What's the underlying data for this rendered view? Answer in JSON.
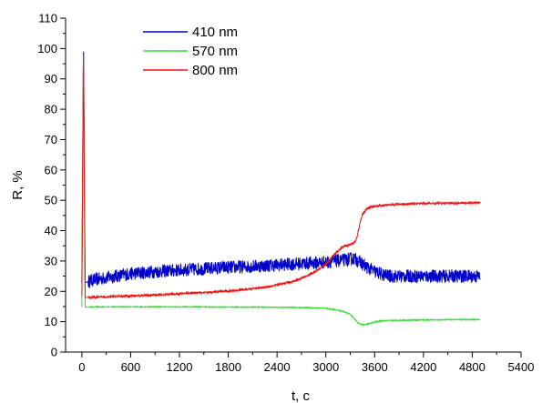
{
  "chart_data": {
    "type": "line",
    "xlabel": "t, c",
    "ylabel": "R, %",
    "xlim": [
      -200,
      5400
    ],
    "ylim": [
      0,
      110
    ],
    "x_ticks": [
      0,
      600,
      1200,
      1800,
      2400,
      3000,
      3600,
      4200,
      4800,
      5400
    ],
    "y_ticks": [
      0,
      10,
      20,
      30,
      40,
      50,
      60,
      70,
      80,
      90,
      100,
      110
    ],
    "grid": false,
    "legend_position": "top-left",
    "series": [
      {
        "name": "410 nm",
        "color": "#0000cc",
        "noise": 2.2,
        "x": [
          0,
          20,
          40,
          60,
          100,
          200,
          400,
          600,
          800,
          1000,
          1200,
          1400,
          1600,
          1800,
          2000,
          2200,
          2400,
          2600,
          2800,
          3000,
          3100,
          3200,
          3300,
          3350,
          3400,
          3450,
          3500,
          3600,
          3700,
          3800,
          4000,
          4200,
          4400,
          4600,
          4800,
          4900
        ],
        "y": [
          23,
          103,
          23,
          23,
          23.5,
          24,
          25,
          25.8,
          26.3,
          26.7,
          27,
          27.3,
          27.6,
          27.9,
          28.1,
          28.4,
          28.7,
          29,
          29.3,
          29.6,
          29.9,
          30.2,
          30.6,
          30.8,
          30,
          29,
          28,
          26.5,
          25.5,
          25,
          25,
          25,
          25,
          25,
          25,
          25
        ]
      },
      {
        "name": "570 nm",
        "color": "#33dd33",
        "noise": 0.15,
        "x": [
          0,
          20,
          40,
          60,
          200,
          600,
          1000,
          1400,
          1800,
          2200,
          2600,
          2800,
          3000,
          3100,
          3200,
          3300,
          3350,
          3400,
          3450,
          3500,
          3550,
          3600,
          3700,
          3800,
          4000,
          4200,
          4400,
          4600,
          4800,
          4900
        ],
        "y": [
          14.8,
          101,
          14.8,
          14.8,
          14.9,
          14.9,
          14.9,
          14.9,
          14.8,
          14.8,
          14.7,
          14.6,
          14.4,
          14,
          13.5,
          12.5,
          11,
          9.5,
          9,
          9.1,
          9.5,
          9.9,
          10.3,
          10.4,
          10.5,
          10.6,
          10.6,
          10.7,
          10.7,
          10.7
        ]
      },
      {
        "name": "800 nm",
        "color": "#ee1111",
        "noise": 0.35,
        "x": [
          0,
          20,
          40,
          60,
          150,
          300,
          600,
          900,
          1200,
          1500,
          1800,
          2000,
          2200,
          2400,
          2600,
          2800,
          2900,
          3000,
          3100,
          3200,
          3300,
          3350,
          3380,
          3400,
          3420,
          3450,
          3500,
          3550,
          3600,
          3700,
          3800,
          4000,
          4200,
          4400,
          4600,
          4800,
          4900
        ],
        "y": [
          18.5,
          102,
          18,
          18,
          18,
          18.2,
          18.5,
          18.8,
          19.2,
          19.6,
          20.1,
          20.6,
          21.2,
          22.1,
          23.3,
          25.5,
          27,
          29,
          32,
          34.5,
          35.5,
          36,
          37.5,
          40,
          42.5,
          45.5,
          47,
          47.8,
          48,
          48.3,
          48.6,
          48.8,
          49,
          49,
          49.1,
          49.2,
          49.2
        ]
      }
    ]
  }
}
